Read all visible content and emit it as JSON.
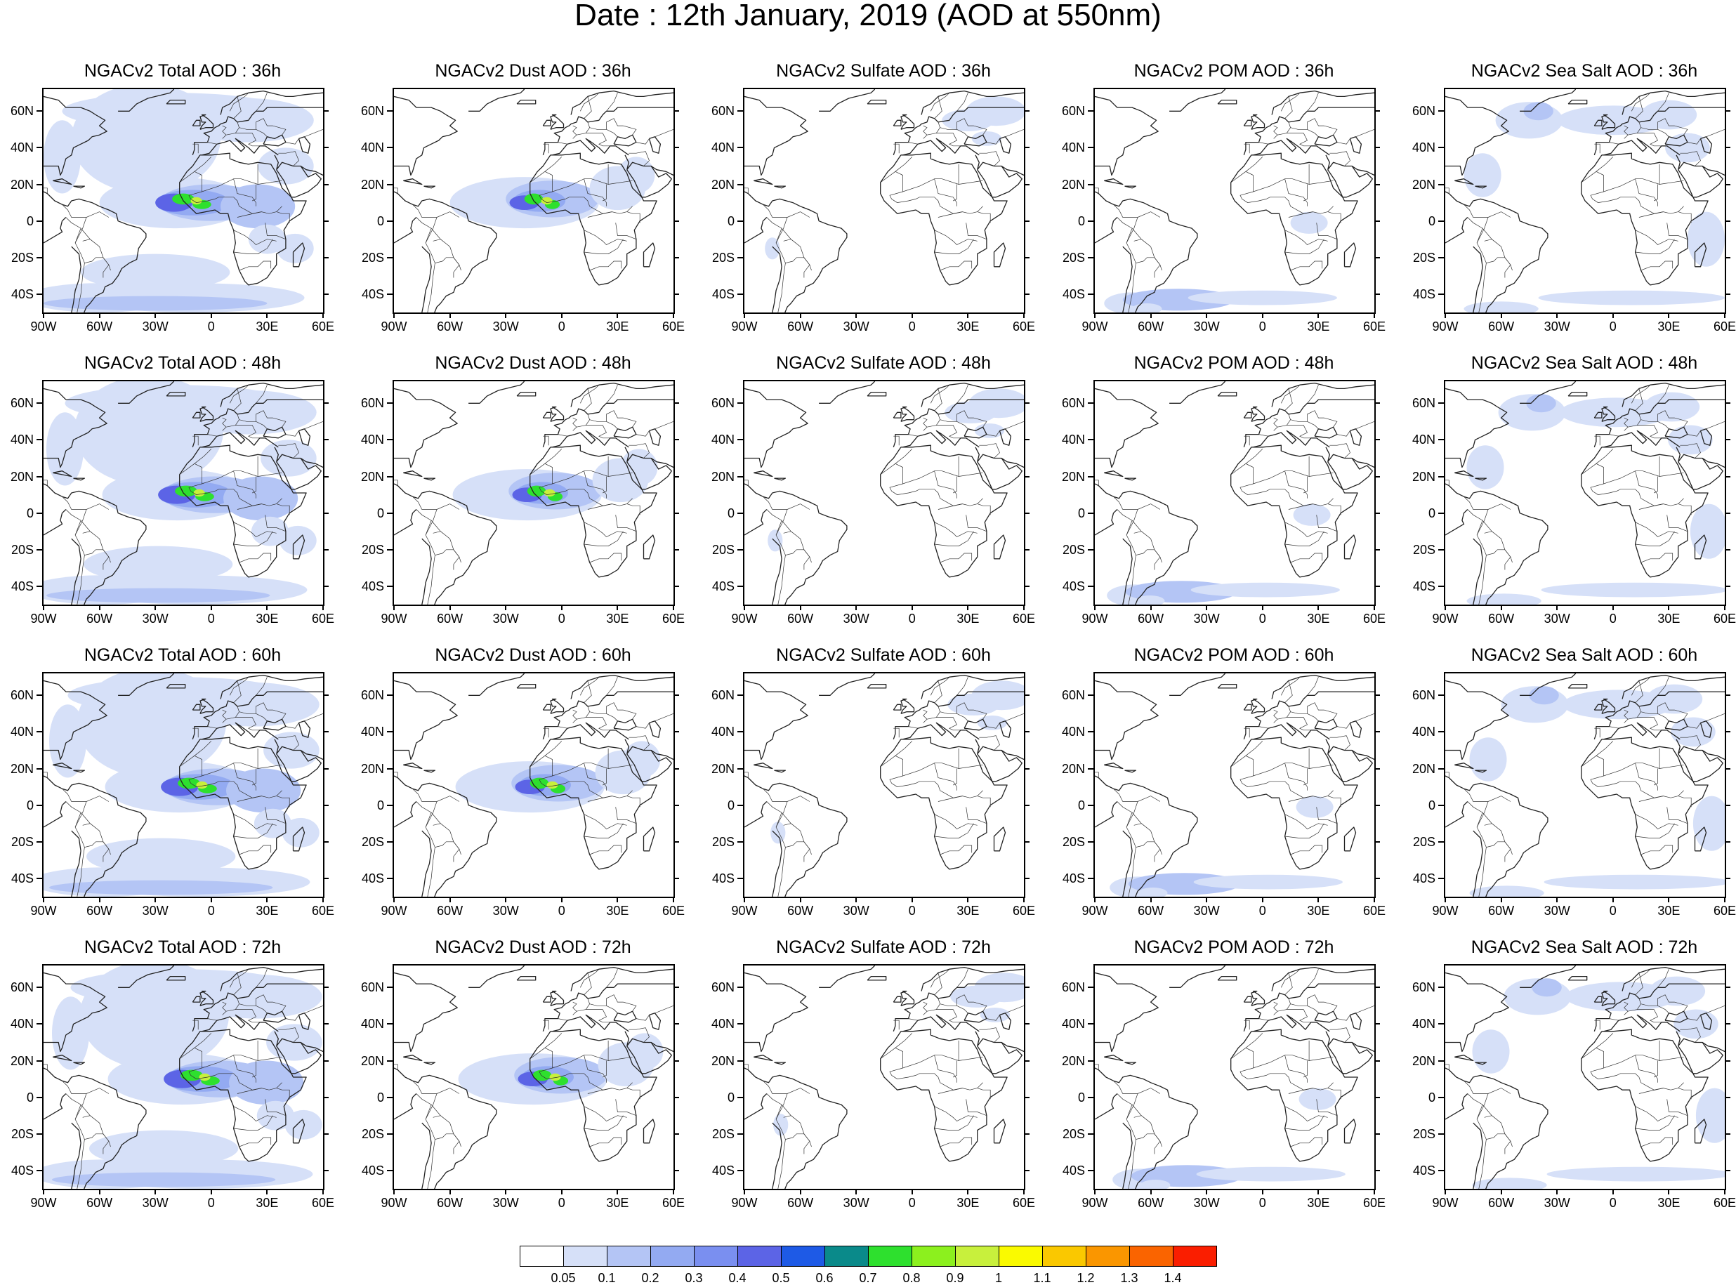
{
  "title": "Date : 12th January, 2019 (AOD at 550nm)",
  "lat_labels": [
    "60N",
    "40N",
    "20N",
    "0",
    "20S",
    "40S"
  ],
  "lon_labels": [
    "90W",
    "60W",
    "30W",
    "0",
    "30E",
    "60E"
  ],
  "panels": [
    {
      "title": "NGACv2 Total AOD : 36h",
      "product": "total"
    },
    {
      "title": "NGACv2 Dust AOD : 36h",
      "product": "dust"
    },
    {
      "title": "NGACv2 Sulfate AOD : 36h",
      "product": "sulfate"
    },
    {
      "title": "NGACv2 POM AOD : 36h",
      "product": "pom"
    },
    {
      "title": "NGACv2 Sea Salt AOD : 36h",
      "product": "seasalt"
    },
    {
      "title": "NGACv2 Total AOD : 48h",
      "product": "total"
    },
    {
      "title": "NGACv2 Dust AOD : 48h",
      "product": "dust"
    },
    {
      "title": "NGACv2 Sulfate AOD : 48h",
      "product": "sulfate"
    },
    {
      "title": "NGACv2 POM AOD : 48h",
      "product": "pom"
    },
    {
      "title": "NGACv2 Sea Salt AOD : 48h",
      "product": "seasalt"
    },
    {
      "title": "NGACv2 Total AOD : 60h",
      "product": "total"
    },
    {
      "title": "NGACv2 Dust AOD : 60h",
      "product": "dust"
    },
    {
      "title": "NGACv2 Sulfate AOD : 60h",
      "product": "sulfate"
    },
    {
      "title": "NGACv2 POM AOD : 60h",
      "product": "pom"
    },
    {
      "title": "NGACv2 Sea Salt AOD : 60h",
      "product": "seasalt"
    },
    {
      "title": "NGACv2 Total AOD : 72h",
      "product": "total"
    },
    {
      "title": "NGACv2 Dust AOD : 72h",
      "product": "dust"
    },
    {
      "title": "NGACv2 Sulfate AOD : 72h",
      "product": "sulfate"
    },
    {
      "title": "NGACv2 POM AOD : 72h",
      "product": "pom"
    },
    {
      "title": "NGACv2 Sea Salt  AOD : 72h",
      "product": "seasalt"
    }
  ],
  "colorbar": {
    "levels": [
      "0.05",
      "0.1",
      "0.2",
      "0.3",
      "0.4",
      "0.5",
      "0.6",
      "0.7",
      "0.8",
      "0.9",
      "1",
      "1.1",
      "1.2",
      "1.3",
      "1.4"
    ],
    "colors": [
      "#ffffff",
      "#d6e0f8",
      "#b4c5f5",
      "#93aaf2",
      "#7a8ff0",
      "#5c64e6",
      "#1e5ae6",
      "#0a8a8a",
      "#2ee02e",
      "#8cf01e",
      "#c8f03c",
      "#fafa00",
      "#fac800",
      "#fa9600",
      "#fa6400",
      "#fa1e00"
    ]
  }
}
